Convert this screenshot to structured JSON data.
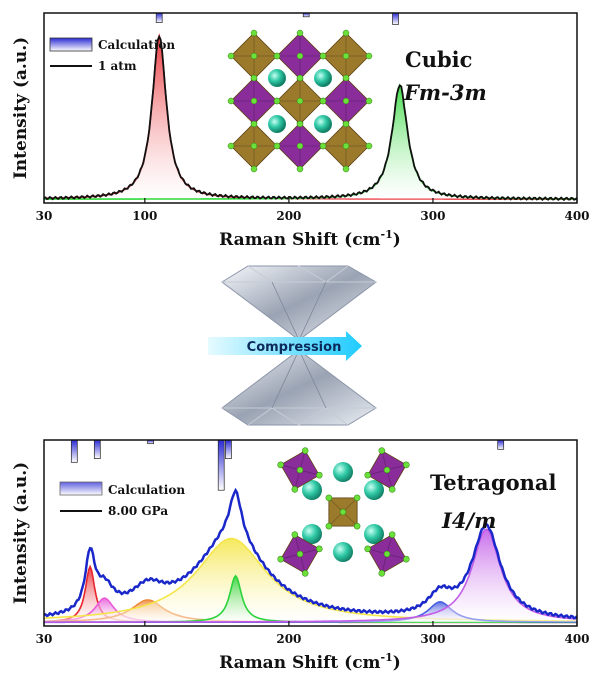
{
  "chart_data": [
    {
      "type": "line",
      "xlabel": "Raman Shift (cm",
      "xlabel_sup": "-1",
      "xlabel_close": ")",
      "ylabel": "Intensity (a.u.)",
      "xlim": [
        30,
        400
      ],
      "xticks": [
        30,
        100,
        200,
        300,
        400
      ],
      "ylim": [
        0,
        1
      ],
      "legend": [
        "Calculation",
        "1 atm"
      ],
      "phase": "Cubic",
      "space_group": "Fm-3m",
      "baseline": 0.02,
      "peaks": [
        {
          "name": "red-peak",
          "center": 110,
          "width": 6,
          "height": 0.86,
          "color": "#e8262c"
        },
        {
          "name": "green-peak",
          "center": 277,
          "width": 6.5,
          "height": 0.6,
          "color": "#31d93a"
        }
      ],
      "calculation_lines": [
        {
          "x": 110,
          "height": 0.05
        },
        {
          "x": 212,
          "height": 0.02
        },
        {
          "x": 274,
          "height": 0.06
        }
      ]
    },
    {
      "type": "line",
      "xlabel": "Raman Shift (cm",
      "xlabel_sup": "-1",
      "xlabel_close": ")",
      "ylabel": "Intensity (a.u.)",
      "xlim": [
        30,
        400
      ],
      "xticks": [
        30,
        100,
        200,
        300,
        400
      ],
      "ylim": [
        0,
        1
      ],
      "legend": [
        "Calculation",
        "8.00 GPa"
      ],
      "phase": "Tetragonal",
      "space_group": "I4/m",
      "baseline": 0.02,
      "peaks": [
        {
          "name": "red-peak",
          "center": 62,
          "width": 4,
          "height": 0.3,
          "color": "#e8262c"
        },
        {
          "name": "magenta-peak",
          "center": 72,
          "width": 8,
          "height": 0.13,
          "color": "#e85ad8"
        },
        {
          "name": "orange-peak",
          "center": 102,
          "width": 14,
          "height": 0.12,
          "color": "#f08a3c"
        },
        {
          "name": "yellow-peak",
          "center": 160,
          "width": 30,
          "height": 0.45,
          "color": "#f4e64a"
        },
        {
          "name": "green-peak",
          "center": 163,
          "width": 5,
          "height": 0.25,
          "color": "#2bd33a"
        },
        {
          "name": "blue-peak",
          "center": 305,
          "width": 10,
          "height": 0.11,
          "color": "#4a5ee0"
        },
        {
          "name": "purple-peak",
          "center": 337,
          "width": 12,
          "height": 0.5,
          "color": "#c25ce8"
        }
      ],
      "calculation_lines": [
        {
          "x": 51,
          "height": 0.12
        },
        {
          "x": 67,
          "height": 0.1
        },
        {
          "x": 104,
          "height": 0.02
        },
        {
          "x": 153,
          "height": 0.27
        },
        {
          "x": 158,
          "height": 0.1
        },
        {
          "x": 347,
          "height": 0.05
        }
      ]
    }
  ],
  "compression_label": "Compression",
  "colors": {
    "envelope": "#1a27c9",
    "frame": "#111111",
    "arrow": "#38d3ff",
    "octa_brown": "#9b7a2c",
    "octa_purple": "#8a2c9a",
    "sphere": "#2fc8a8",
    "node": "#6be03a"
  }
}
